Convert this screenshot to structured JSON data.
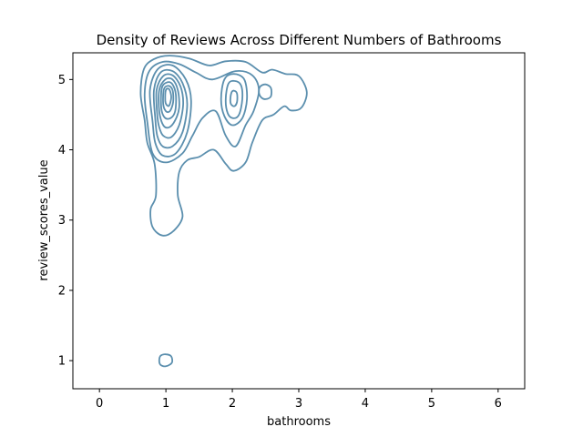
{
  "chart_data": {
    "type": "kde-contour",
    "title": "Density of Reviews Across Different Numbers of Bathrooms",
    "xlabel": "bathrooms",
    "ylabel": "review_scores_value",
    "xlim": [
      -0.4,
      6.4
    ],
    "ylim": [
      0.6,
      5.38
    ],
    "xticks": [
      0,
      1,
      2,
      3,
      4,
      5,
      6
    ],
    "yticks": [
      1,
      2,
      3,
      4,
      5
    ],
    "grid": false,
    "line_color": "#5b8fae",
    "contours": [
      {
        "level": 1,
        "points": [
          [
            0.68,
            4.42
          ],
          [
            0.62,
            4.8
          ],
          [
            0.67,
            5.15
          ],
          [
            0.82,
            5.29
          ],
          [
            1.05,
            5.34
          ],
          [
            1.35,
            5.3
          ],
          [
            1.65,
            5.2
          ],
          [
            1.9,
            5.26
          ],
          [
            2.2,
            5.25
          ],
          [
            2.45,
            5.1
          ],
          [
            2.6,
            5.14
          ],
          [
            2.8,
            5.08
          ],
          [
            3.0,
            5.05
          ],
          [
            3.12,
            4.82
          ],
          [
            3.04,
            4.6
          ],
          [
            2.88,
            4.56
          ],
          [
            2.78,
            4.62
          ],
          [
            2.62,
            4.5
          ],
          [
            2.45,
            4.42
          ],
          [
            2.3,
            4.1
          ],
          [
            2.2,
            3.82
          ],
          [
            2.02,
            3.7
          ],
          [
            1.9,
            3.8
          ],
          [
            1.72,
            4.0
          ],
          [
            1.5,
            3.9
          ],
          [
            1.32,
            3.85
          ],
          [
            1.2,
            3.68
          ],
          [
            1.18,
            3.35
          ],
          [
            1.25,
            3.05
          ],
          [
            1.12,
            2.85
          ],
          [
            0.95,
            2.78
          ],
          [
            0.8,
            2.9
          ],
          [
            0.77,
            3.15
          ],
          [
            0.85,
            3.35
          ],
          [
            0.83,
            3.8
          ],
          [
            0.72,
            4.1
          ]
        ]
      },
      {
        "level": 2,
        "points": [
          [
            0.72,
            4.4
          ],
          [
            0.68,
            4.8
          ],
          [
            0.75,
            5.12
          ],
          [
            0.95,
            5.25
          ],
          [
            1.2,
            5.22
          ],
          [
            1.45,
            5.1
          ],
          [
            1.7,
            5.0
          ],
          [
            2.05,
            5.12
          ],
          [
            2.3,
            5.06
          ],
          [
            2.4,
            4.85
          ],
          [
            2.32,
            4.55
          ],
          [
            2.2,
            4.35
          ],
          [
            2.05,
            4.05
          ],
          [
            1.9,
            4.2
          ],
          [
            1.75,
            4.55
          ],
          [
            1.55,
            4.45
          ],
          [
            1.4,
            4.2
          ],
          [
            1.25,
            3.95
          ],
          [
            1.0,
            3.82
          ],
          [
            0.8,
            3.95
          ]
        ]
      },
      {
        "level": 3,
        "points": [
          [
            0.8,
            4.4
          ],
          [
            0.76,
            4.85
          ],
          [
            0.88,
            5.15
          ],
          [
            1.1,
            5.2
          ],
          [
            1.3,
            5.0
          ],
          [
            1.38,
            4.7
          ],
          [
            1.32,
            4.25
          ],
          [
            1.15,
            3.95
          ],
          [
            0.95,
            3.92
          ],
          [
            0.84,
            4.1
          ]
        ]
      },
      {
        "level": 4,
        "points": [
          [
            0.84,
            4.45
          ],
          [
            0.82,
            4.85
          ],
          [
            0.92,
            5.1
          ],
          [
            1.1,
            5.12
          ],
          [
            1.25,
            4.95
          ],
          [
            1.32,
            4.65
          ],
          [
            1.25,
            4.25
          ],
          [
            1.1,
            4.05
          ],
          [
            0.95,
            4.05
          ],
          [
            0.87,
            4.2
          ]
        ]
      },
      {
        "level": 5,
        "points": [
          [
            0.87,
            4.5
          ],
          [
            0.86,
            4.85
          ],
          [
            0.96,
            5.05
          ],
          [
            1.1,
            5.06
          ],
          [
            1.22,
            4.9
          ],
          [
            1.26,
            4.65
          ],
          [
            1.2,
            4.35
          ],
          [
            1.08,
            4.18
          ],
          [
            0.96,
            4.2
          ],
          [
            0.9,
            4.32
          ]
        ]
      },
      {
        "level": 6,
        "points": [
          [
            0.9,
            4.55
          ],
          [
            0.9,
            4.85
          ],
          [
            0.99,
            5.0
          ],
          [
            1.1,
            5.0
          ],
          [
            1.18,
            4.85
          ],
          [
            1.2,
            4.6
          ],
          [
            1.14,
            4.42
          ],
          [
            1.05,
            4.32
          ],
          [
            0.96,
            4.35
          ]
        ]
      },
      {
        "level": 7,
        "points": [
          [
            0.93,
            4.6
          ],
          [
            0.94,
            4.88
          ],
          [
            1.02,
            4.96
          ],
          [
            1.1,
            4.93
          ],
          [
            1.15,
            4.78
          ],
          [
            1.14,
            4.55
          ],
          [
            1.07,
            4.45
          ],
          [
            0.98,
            4.46
          ]
        ]
      },
      {
        "level": 8,
        "points": [
          [
            0.96,
            4.65
          ],
          [
            0.97,
            4.86
          ],
          [
            1.04,
            4.91
          ],
          [
            1.1,
            4.85
          ],
          [
            1.11,
            4.68
          ],
          [
            1.06,
            4.55
          ],
          [
            1.0,
            4.55
          ]
        ]
      },
      {
        "level": 9,
        "points": [
          [
            0.99,
            4.7
          ],
          [
            1.0,
            4.85
          ],
          [
            1.05,
            4.86
          ],
          [
            1.08,
            4.75
          ],
          [
            1.05,
            4.63
          ],
          [
            1.01,
            4.64
          ]
        ]
      },
      {
        "level": 2,
        "points": [
          [
            1.83,
            4.72
          ],
          [
            1.88,
            5.0
          ],
          [
            2.02,
            5.08
          ],
          [
            2.18,
            5.0
          ],
          [
            2.22,
            4.72
          ],
          [
            2.15,
            4.45
          ],
          [
            2.0,
            4.35
          ],
          [
            1.88,
            4.48
          ]
        ]
      },
      {
        "level": 3,
        "points": [
          [
            1.9,
            4.72
          ],
          [
            1.94,
            4.94
          ],
          [
            2.03,
            4.98
          ],
          [
            2.13,
            4.92
          ],
          [
            2.15,
            4.72
          ],
          [
            2.1,
            4.5
          ],
          [
            2.01,
            4.45
          ],
          [
            1.93,
            4.52
          ]
        ]
      },
      {
        "level": 4,
        "points": [
          [
            1.97,
            4.72
          ],
          [
            1.99,
            4.82
          ],
          [
            2.03,
            4.84
          ],
          [
            2.07,
            4.8
          ],
          [
            2.07,
            4.68
          ],
          [
            2.03,
            4.62
          ],
          [
            1.98,
            4.65
          ]
        ]
      },
      {
        "level": 2,
        "points": [
          [
            2.4,
            4.82
          ],
          [
            2.42,
            4.9
          ],
          [
            2.5,
            4.93
          ],
          [
            2.58,
            4.88
          ],
          [
            2.58,
            4.76
          ],
          [
            2.5,
            4.72
          ],
          [
            2.43,
            4.75
          ]
        ]
      },
      {
        "level": 1,
        "points": [
          [
            0.9,
            1.0
          ],
          [
            0.92,
            1.07
          ],
          [
            1.0,
            1.09
          ],
          [
            1.08,
            1.06
          ],
          [
            1.09,
            0.97
          ],
          [
            1.0,
            0.92
          ],
          [
            0.92,
            0.94
          ]
        ]
      }
    ]
  }
}
